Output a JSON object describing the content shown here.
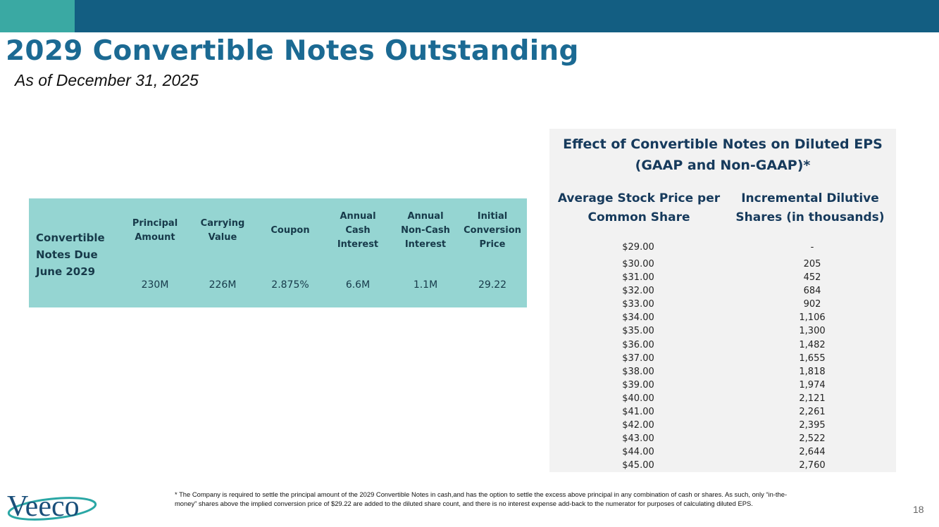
{
  "title": "2029 Convertible Notes Outstanding",
  "subtitle": "As of December 31, 2025",
  "notes_table": {
    "row_label": "Convertible Notes Due June 2029",
    "headers": [
      "Principal Amount",
      "Carrying Value",
      "Coupon",
      "Annual Cash Interest",
      "Annual Non-Cash Interest",
      "Initial Conversion Price"
    ],
    "values": [
      "230M",
      "226M",
      "2.875%",
      "6.6M",
      "1.1M",
      "29.22"
    ]
  },
  "eps_panel": {
    "title": "Effect of Convertible Notes on Diluted EPS (GAAP and Non-GAAP)*",
    "col1_header": "Average Stock Price per Common Share",
    "col2_header": "Incremental Dilutive Shares (in thousands)",
    "rows": [
      {
        "price": "$29.00",
        "shares": "-"
      },
      {
        "price": "$30.00",
        "shares": "205"
      },
      {
        "price": "$31.00",
        "shares": "452"
      },
      {
        "price": "$32.00",
        "shares": "684"
      },
      {
        "price": "$33.00",
        "shares": "902"
      },
      {
        "price": "$34.00",
        "shares": "1,106"
      },
      {
        "price": "$35.00",
        "shares": "1,300"
      },
      {
        "price": "$36.00",
        "shares": "1,482"
      },
      {
        "price": "$37.00",
        "shares": "1,655"
      },
      {
        "price": "$38.00",
        "shares": "1,818"
      },
      {
        "price": "$39.00",
        "shares": "1,974"
      },
      {
        "price": "$40.00",
        "shares": "2,121"
      },
      {
        "price": "$41.00",
        "shares": "2,261"
      },
      {
        "price": "$42.00",
        "shares": "2,395"
      },
      {
        "price": "$43.00",
        "shares": "2,522"
      },
      {
        "price": "$44.00",
        "shares": "2,644"
      },
      {
        "price": "$45.00",
        "shares": "2,760"
      }
    ]
  },
  "footnote": "* The Company is required to settle the principal amount of the 2029 Convertible Notes in cash,and has the option to settle the excess above principal in any combination of cash or shares. As such, only “in-the-money” shares above the implied conversion price of $29.22 are added to the diluted share count, and there is no interest expense add-back to the numerator for purposes of calculating diluted EPS.",
  "logo_text": "Veeco",
  "page_number": "18",
  "colors": {
    "top_bar": "#135e82",
    "top_bar_accent": "#3aa9a3",
    "title": "#1b6a93",
    "notes_table_bg": "#95d5d2",
    "eps_panel_bg": "#f2f2f2"
  }
}
